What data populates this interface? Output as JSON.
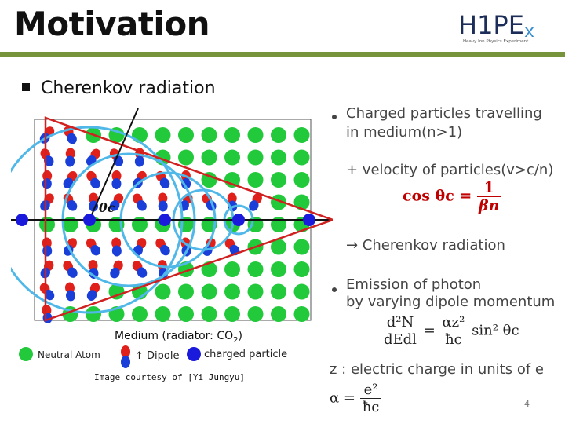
{
  "slide": {
    "title": "Motivation",
    "logo_main": "H1PE",
    "logo_x": "x",
    "logo_sub": "Heavy Ion Physics Experiment",
    "bullet_heading": "Cherenkov radiation",
    "page_number": "4"
  },
  "diagram": {
    "angle_label": "θc",
    "caption_prefix": "Medium (radiator: CO",
    "caption_sub": "2",
    "caption_suffix": ")",
    "legend_atom": "Neutral Atom",
    "legend_dipole": "↑ Dipole",
    "legend_charge": "charged particle",
    "credit": "Image courtesy of [Yi Jungyu]",
    "colors": {
      "atom": "#22c93b",
      "dipole_pos": "#e0201a",
      "dipole_neg": "#1a3fd8",
      "charge": "#1a1adc",
      "cone": "#d02020",
      "wave": "#4fb8e8"
    }
  },
  "right": {
    "b1_line1": "Charged particles travelling",
    "b1_line2": "in medium(n>1)",
    "plus_line": "+ velocity of particles(v>c/n)",
    "cos_lhs": "cos θc =",
    "cos_num": "1",
    "cos_den": "βn",
    "arrow_line": "→ Cherenkov radiation",
    "b2_line1": "Emission of photon",
    "b2_line2": "by varying dipole momentum",
    "dn_num": "d²N",
    "dn_den": "dEdl",
    "dn_eq": "=",
    "az_num": "αz²",
    "az_den": "ħc",
    "dn_tail": "sin² θc",
    "z_line": "z : electric charge in units of e",
    "alpha_lhs": "α =",
    "alpha_num": "e²",
    "alpha_den": "ħc"
  }
}
